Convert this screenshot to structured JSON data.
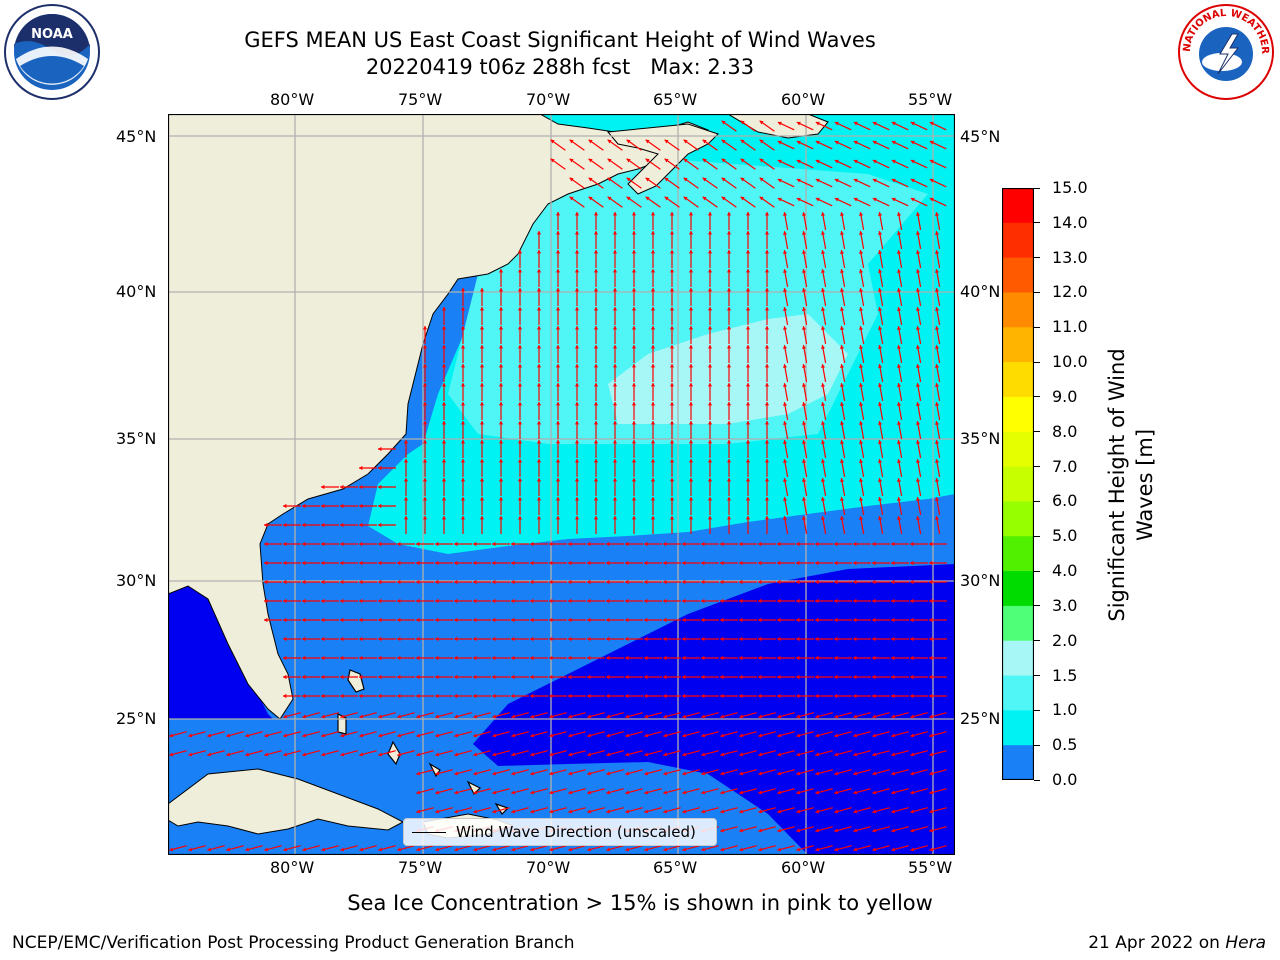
{
  "title": {
    "line1": "GEFS MEAN US East Coast Significant Height of Wind Waves",
    "line2": "20220419 t06z 288h fcst   Max: 2.33"
  },
  "map": {
    "lon_labels": [
      "80°W",
      "75°W",
      "70°W",
      "65°W",
      "60°W",
      "55°W"
    ],
    "lat_labels": [
      "45°N",
      "40°N",
      "35°N",
      "30°N",
      "25°N"
    ],
    "colors": {
      "land": "#efeedb",
      "ocean_0_05": "#0000f0",
      "ocean_05_1": "#1a80f5",
      "ocean_1_15": "#00f2f2",
      "ocean_15_2": "#50f5f5",
      "ocean_2_3": "#a8f7f7",
      "arrow": "#ff0000",
      "grid": "#b0b0b0"
    }
  },
  "legend": {
    "label": "Wind Wave Direction (unscaled)"
  },
  "colorbar": {
    "title": "Significant Height of Wind Waves [m]",
    "title_line1": "Significant Height of Wind",
    "title_line2": "Waves [m]",
    "ticks": [
      "15.0",
      "14.0",
      "13.0",
      "12.0",
      "11.0",
      "10.0",
      "9.0",
      "8.0",
      "7.0",
      "6.0",
      "5.0",
      "4.0",
      "3.0",
      "2.0",
      "1.5",
      "1.0",
      "0.5",
      "0.0"
    ],
    "colors": [
      "#ff0000",
      "#ff2e00",
      "#ff5a00",
      "#ff8c00",
      "#ffb400",
      "#ffdc00",
      "#ffff00",
      "#e6ff00",
      "#c8ff00",
      "#96ff00",
      "#50f000",
      "#00dc00",
      "#50ff78",
      "#a8f7f7",
      "#50f5f5",
      "#00f2f2",
      "#1a80f5",
      "#0000f0"
    ]
  },
  "footnote": "Sea Ice Concentration > 15% is shown in pink to yellow",
  "footer": {
    "left": "NCEP/EMC/Verification Post Processing Product Generation Branch",
    "right_date": "21 Apr 2022 on ",
    "right_host": "Hera"
  },
  "logos": {
    "noaa": "NOAA",
    "nws": "NATIONAL WEATHER SERVICE"
  }
}
